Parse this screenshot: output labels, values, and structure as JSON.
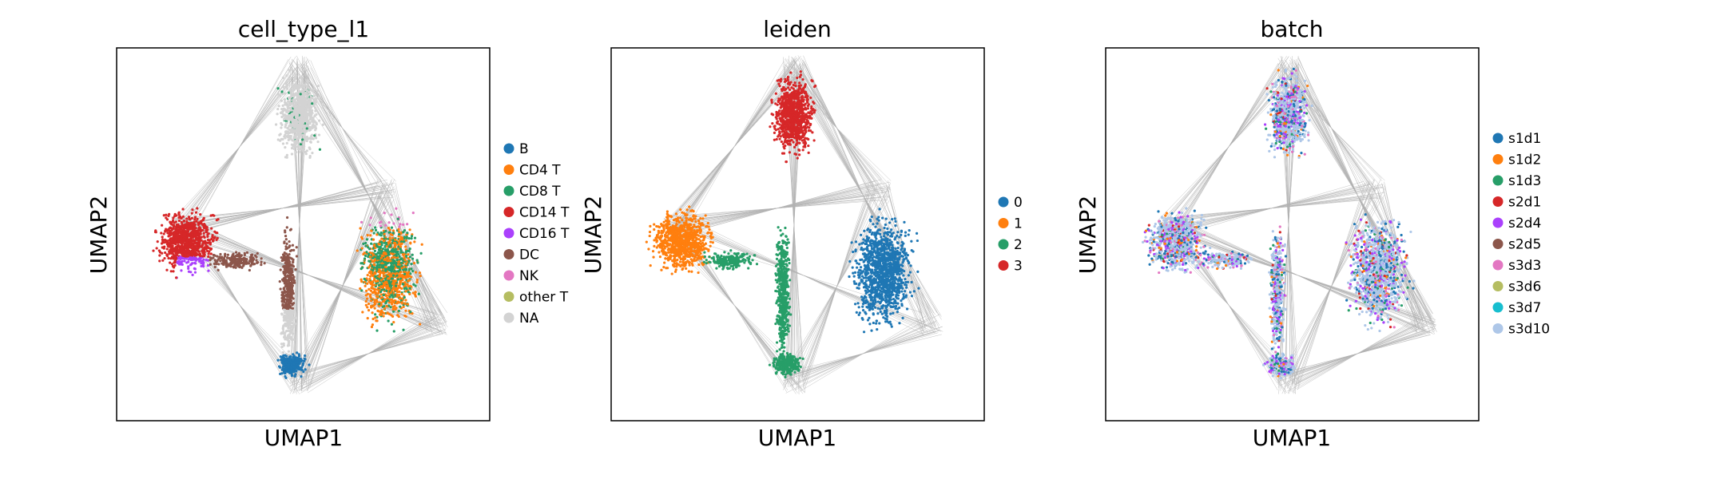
{
  "figure": {
    "background": "#ffffff",
    "edge_color": "#808080"
  },
  "chart_data": [
    {
      "type": "scatter",
      "title": "cell_type_l1",
      "xlabel": "UMAP1",
      "ylabel": "UMAP2",
      "grid": false,
      "legend_position": "right",
      "x_ticks": [],
      "y_ticks": [],
      "legend": [
        {
          "label": "B",
          "color": "#1f77b4"
        },
        {
          "label": "CD4 T",
          "color": "#ff7f0e"
        },
        {
          "label": "CD8 T",
          "color": "#279e68"
        },
        {
          "label": "CD14 T",
          "color": "#d62728"
        },
        {
          "label": "CD16 T",
          "color": "#aa40fc"
        },
        {
          "label": "DC",
          "color": "#8c564b"
        },
        {
          "label": "NK",
          "color": "#e377c2"
        },
        {
          "label": "other T",
          "color": "#b5bd61"
        },
        {
          "label": "NA",
          "color": "#d3d3d3"
        }
      ]
    },
    {
      "type": "scatter",
      "title": "leiden",
      "xlabel": "UMAP1",
      "ylabel": "UMAP2",
      "grid": false,
      "legend_position": "right",
      "x_ticks": [],
      "y_ticks": [],
      "legend": [
        {
          "label": "0",
          "color": "#1f77b4"
        },
        {
          "label": "1",
          "color": "#ff7f0e"
        },
        {
          "label": "2",
          "color": "#279e68"
        },
        {
          "label": "3",
          "color": "#d62728"
        }
      ]
    },
    {
      "type": "scatter",
      "title": "batch",
      "xlabel": "UMAP1",
      "ylabel": "UMAP2",
      "grid": false,
      "legend_position": "right",
      "x_ticks": [],
      "y_ticks": [],
      "legend": [
        {
          "label": "s1d1",
          "color": "#1f77b4"
        },
        {
          "label": "s1d2",
          "color": "#ff7f0e"
        },
        {
          "label": "s1d3",
          "color": "#279e68"
        },
        {
          "label": "s2d1",
          "color": "#d62728"
        },
        {
          "label": "s2d4",
          "color": "#aa40fc"
        },
        {
          "label": "s2d5",
          "color": "#8c564b"
        },
        {
          "label": "s3d3",
          "color": "#e377c2"
        },
        {
          "label": "s3d6",
          "color": "#b5bd61"
        },
        {
          "label": "s3d7",
          "color": "#17becf"
        },
        {
          "label": "s3d10",
          "color": "#aec7e8"
        }
      ]
    }
  ]
}
